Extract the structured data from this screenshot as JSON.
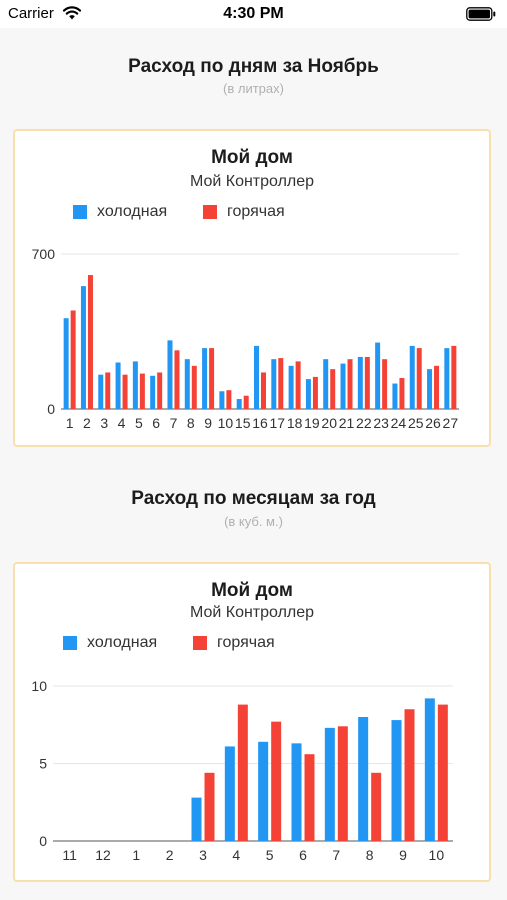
{
  "status_bar": {
    "carrier": "Carrier",
    "time": "4:30 PM"
  },
  "daily_section": {
    "title": "Расход по дням за Ноябрь",
    "subtitle": "(в литрах)"
  },
  "monthly_section": {
    "title": "Расход по месяцам за год",
    "subtitle": "(в куб. м.)"
  },
  "daily_card": {
    "title": "Мой дом",
    "subtitle": "Мой Контроллер"
  },
  "monthly_card": {
    "title": "Мой дом",
    "subtitle": "Мой Контроллер"
  },
  "legend": {
    "cold": "холодная",
    "hot": "горячая"
  },
  "colors": {
    "cold": "#2196f3",
    "hot": "#f44336",
    "card_border": "#f7dfae"
  },
  "chart_data": [
    {
      "type": "bar",
      "title": "Мой дом",
      "subtitle": "Мой Контроллер",
      "categories": [
        "1",
        "2",
        "3",
        "4",
        "5",
        "6",
        "7",
        "8",
        "9",
        "10",
        "15",
        "16",
        "17",
        "18",
        "19",
        "20",
        "21",
        "22",
        "23",
        "24",
        "25",
        "26",
        "27"
      ],
      "series": [
        {
          "name": "холодная",
          "color": "#2196f3",
          "values": [
            410,
            555,
            155,
            210,
            215,
            150,
            310,
            225,
            275,
            80,
            45,
            285,
            225,
            195,
            135,
            225,
            205,
            235,
            300,
            115,
            285,
            180,
            275
          ]
        },
        {
          "name": "горячая",
          "color": "#f44336",
          "values": [
            445,
            605,
            165,
            155,
            160,
            165,
            265,
            195,
            275,
            85,
            60,
            165,
            230,
            215,
            145,
            180,
            225,
            235,
            225,
            140,
            275,
            195,
            285
          ]
        }
      ],
      "yticks": [
        0,
        700
      ],
      "ylim": [
        0,
        700
      ],
      "legend_position": "top-left",
      "grid": true
    },
    {
      "type": "bar",
      "title": "Мой дом",
      "subtitle": "Мой Контроллер",
      "categories": [
        "11",
        "12",
        "1",
        "2",
        "3",
        "4",
        "5",
        "6",
        "7",
        "8",
        "9",
        "10"
      ],
      "series": [
        {
          "name": "холодная",
          "color": "#2196f3",
          "values": [
            0,
            0,
            0,
            0,
            2.8,
            6.1,
            6.4,
            6.3,
            7.3,
            8.0,
            7.8,
            9.2
          ]
        },
        {
          "name": "горячая",
          "color": "#f44336",
          "values": [
            0,
            0,
            0,
            0,
            4.4,
            8.8,
            7.7,
            5.6,
            7.4,
            4.4,
            8.5,
            8.8
          ]
        }
      ],
      "yticks": [
        0,
        5,
        10
      ],
      "ylim": [
        0,
        10
      ],
      "legend_position": "top-left",
      "grid": true
    }
  ]
}
